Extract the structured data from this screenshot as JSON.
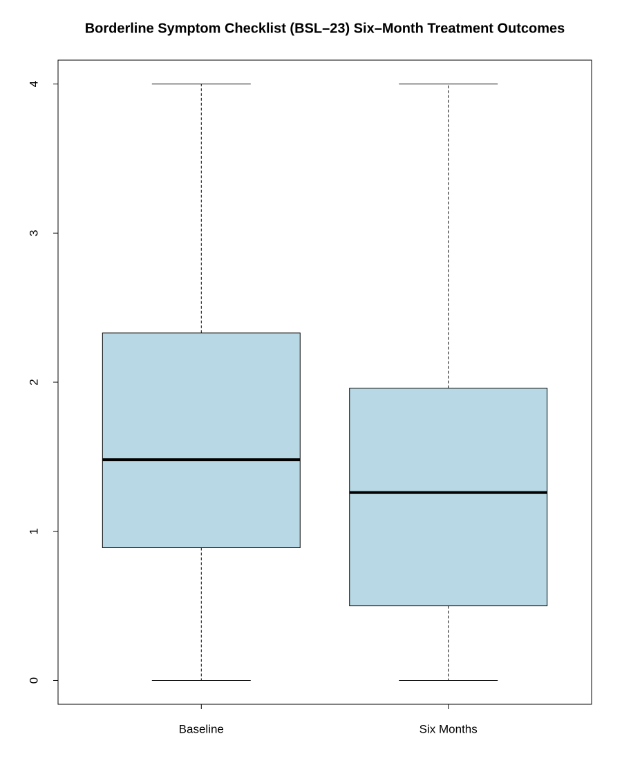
{
  "chart_data": {
    "type": "boxplot",
    "title": "Borderline Symptom Checklist (BSL–23) Six–Month Treatment Outcomes",
    "categories": [
      "Baseline",
      "Six Months"
    ],
    "boxes": [
      {
        "min": 0,
        "q1": 0.89,
        "median": 1.48,
        "q3": 2.33,
        "max": 4
      },
      {
        "min": 0,
        "q1": 0.5,
        "median": 1.26,
        "q3": 1.96,
        "max": 4
      }
    ],
    "color": "#b7d8e4",
    "ylim": [
      -0.16,
      4.16
    ],
    "yticks": [
      0,
      1,
      2,
      3,
      4
    ],
    "xlim": [
      0.42,
      2.58
    ]
  }
}
